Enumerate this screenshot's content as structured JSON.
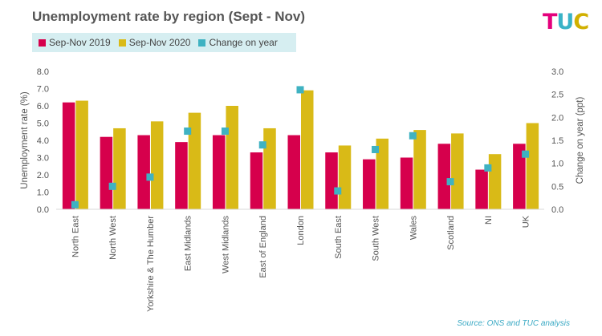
{
  "logo": {
    "text": "TUC",
    "letters": [
      {
        "ch": "T",
        "color": "#e4007c"
      },
      {
        "ch": "U",
        "color": "#39b3c7"
      },
      {
        "ch": "C",
        "color": "#d1b000"
      }
    ]
  },
  "chart_data": {
    "type": "bar",
    "title": "Unemployment rate by region (Sept - Nov)",
    "categories": [
      "North East",
      "North West",
      "Yorkshire & The Humber",
      "East Midlands",
      "West Midlands",
      "East of England",
      "London",
      "South East",
      "South West",
      "Wales",
      "Scotland",
      "NI",
      "UK"
    ],
    "series": [
      {
        "name": "Sep-Nov 2019",
        "type": "bar",
        "axis": "left",
        "color": "#d6004c",
        "values": [
          6.2,
          4.2,
          4.3,
          3.9,
          4.3,
          3.3,
          4.3,
          3.3,
          2.9,
          3.0,
          3.8,
          2.3,
          3.8
        ]
      },
      {
        "name": "Sep-Nov 2020",
        "type": "bar",
        "axis": "left",
        "color": "#d9ba17",
        "values": [
          6.3,
          4.7,
          5.1,
          5.6,
          6.0,
          4.7,
          6.9,
          3.7,
          4.1,
          4.6,
          4.4,
          3.2,
          5.0
        ]
      },
      {
        "name": "Change on year",
        "type": "marker",
        "axis": "right",
        "color": "#3fb2c2",
        "values": [
          0.1,
          0.5,
          0.7,
          1.7,
          1.7,
          1.4,
          2.6,
          0.4,
          1.3,
          1.6,
          0.6,
          0.9,
          1.2
        ]
      }
    ],
    "ylabel": "Unemployment rate (%)",
    "y2label": "Change on year (ppt)",
    "ylim": [
      0,
      8
    ],
    "y2lim": [
      0,
      3
    ],
    "yticks": [
      "0.0",
      "1.0",
      "2.0",
      "3.0",
      "4.0",
      "5.0",
      "6.0",
      "7.0",
      "8.0"
    ],
    "y2ticks": [
      "0.0",
      "0.5",
      "1.0",
      "1.5",
      "2.0",
      "2.5",
      "3.0"
    ],
    "grid": false,
    "legend_position": "top-left"
  },
  "source": "Source: ONS and TUC analysis"
}
